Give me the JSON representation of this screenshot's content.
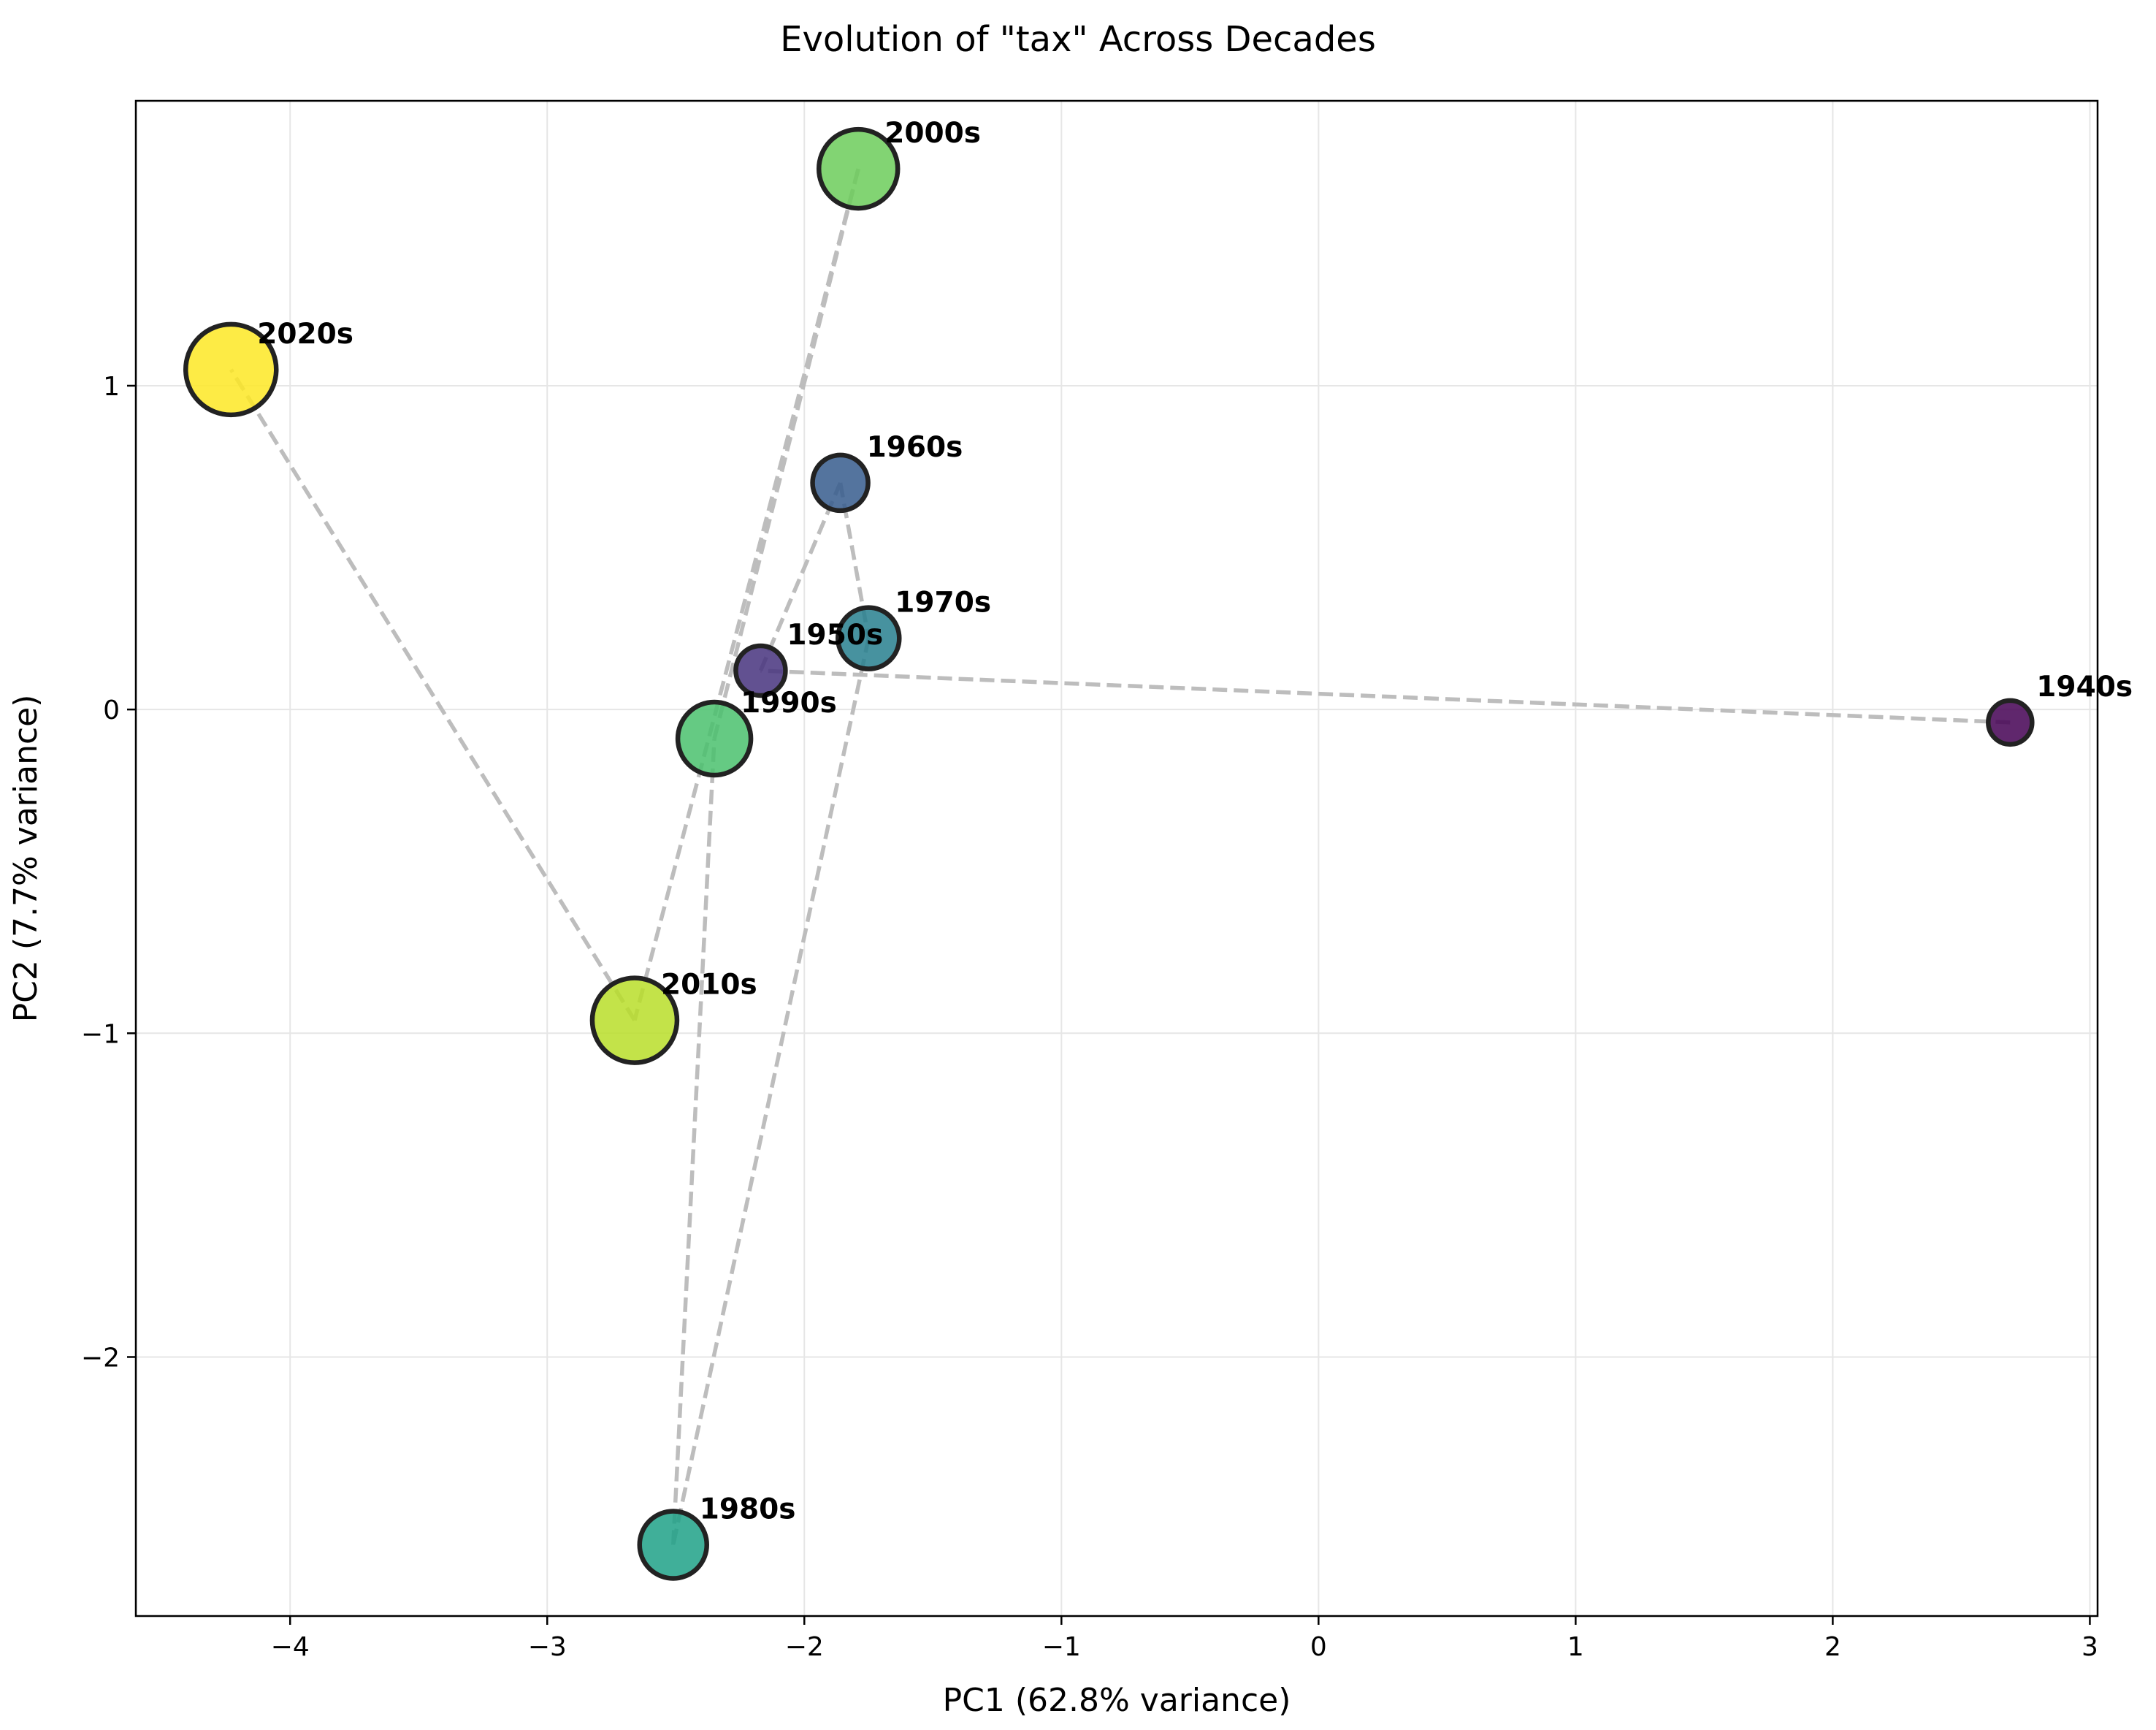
{
  "chart_data": {
    "type": "scatter",
    "title": "Evolution of \"tax\" Across Decades",
    "xlabel": "PC1 (62.8% variance)",
    "ylabel": "PC2 (7.7% variance)",
    "xlim": [
      -4.6,
      3.03
    ],
    "ylim": [
      -2.8,
      1.88
    ],
    "xticks": [
      -4,
      -3,
      -2,
      -1,
      0,
      1,
      2,
      3
    ],
    "yticks": [
      -2,
      -1,
      0,
      1
    ],
    "grid": true,
    "points": [
      {
        "label": "1940s",
        "x": 2.69,
        "y": -0.04,
        "size": 1,
        "color": "#440154"
      },
      {
        "label": "1950s",
        "x": -2.17,
        "y": 0.12,
        "size": 2,
        "color": "#46327e"
      },
      {
        "label": "1960s",
        "x": -1.86,
        "y": 0.7,
        "size": 3,
        "color": "#365c8d"
      },
      {
        "label": "1970s",
        "x": -1.75,
        "y": 0.22,
        "size": 4,
        "color": "#277f8e"
      },
      {
        "label": "1980s",
        "x": -2.51,
        "y": -2.58,
        "size": 5,
        "color": "#1fa187"
      },
      {
        "label": "1990s",
        "x": -2.35,
        "y": -0.09,
        "size": 6,
        "color": "#4ac16d"
      },
      {
        "label": "2000s",
        "x": -1.79,
        "y": 1.67,
        "size": 7,
        "color": "#6ccd5a"
      },
      {
        "label": "2010s",
        "x": -2.66,
        "y": -0.96,
        "size": 8,
        "color": "#b8de29"
      },
      {
        "label": "2020s",
        "x": -4.23,
        "y": 1.05,
        "size": 9,
        "color": "#fde725"
      }
    ],
    "trajectory": [
      "1940s",
      "1950s",
      "1960s",
      "1970s",
      "1980s",
      "1990s",
      "2000s",
      "2010s",
      "2020s"
    ],
    "line_color": "#bdbdbd",
    "line_style": "dashed"
  }
}
